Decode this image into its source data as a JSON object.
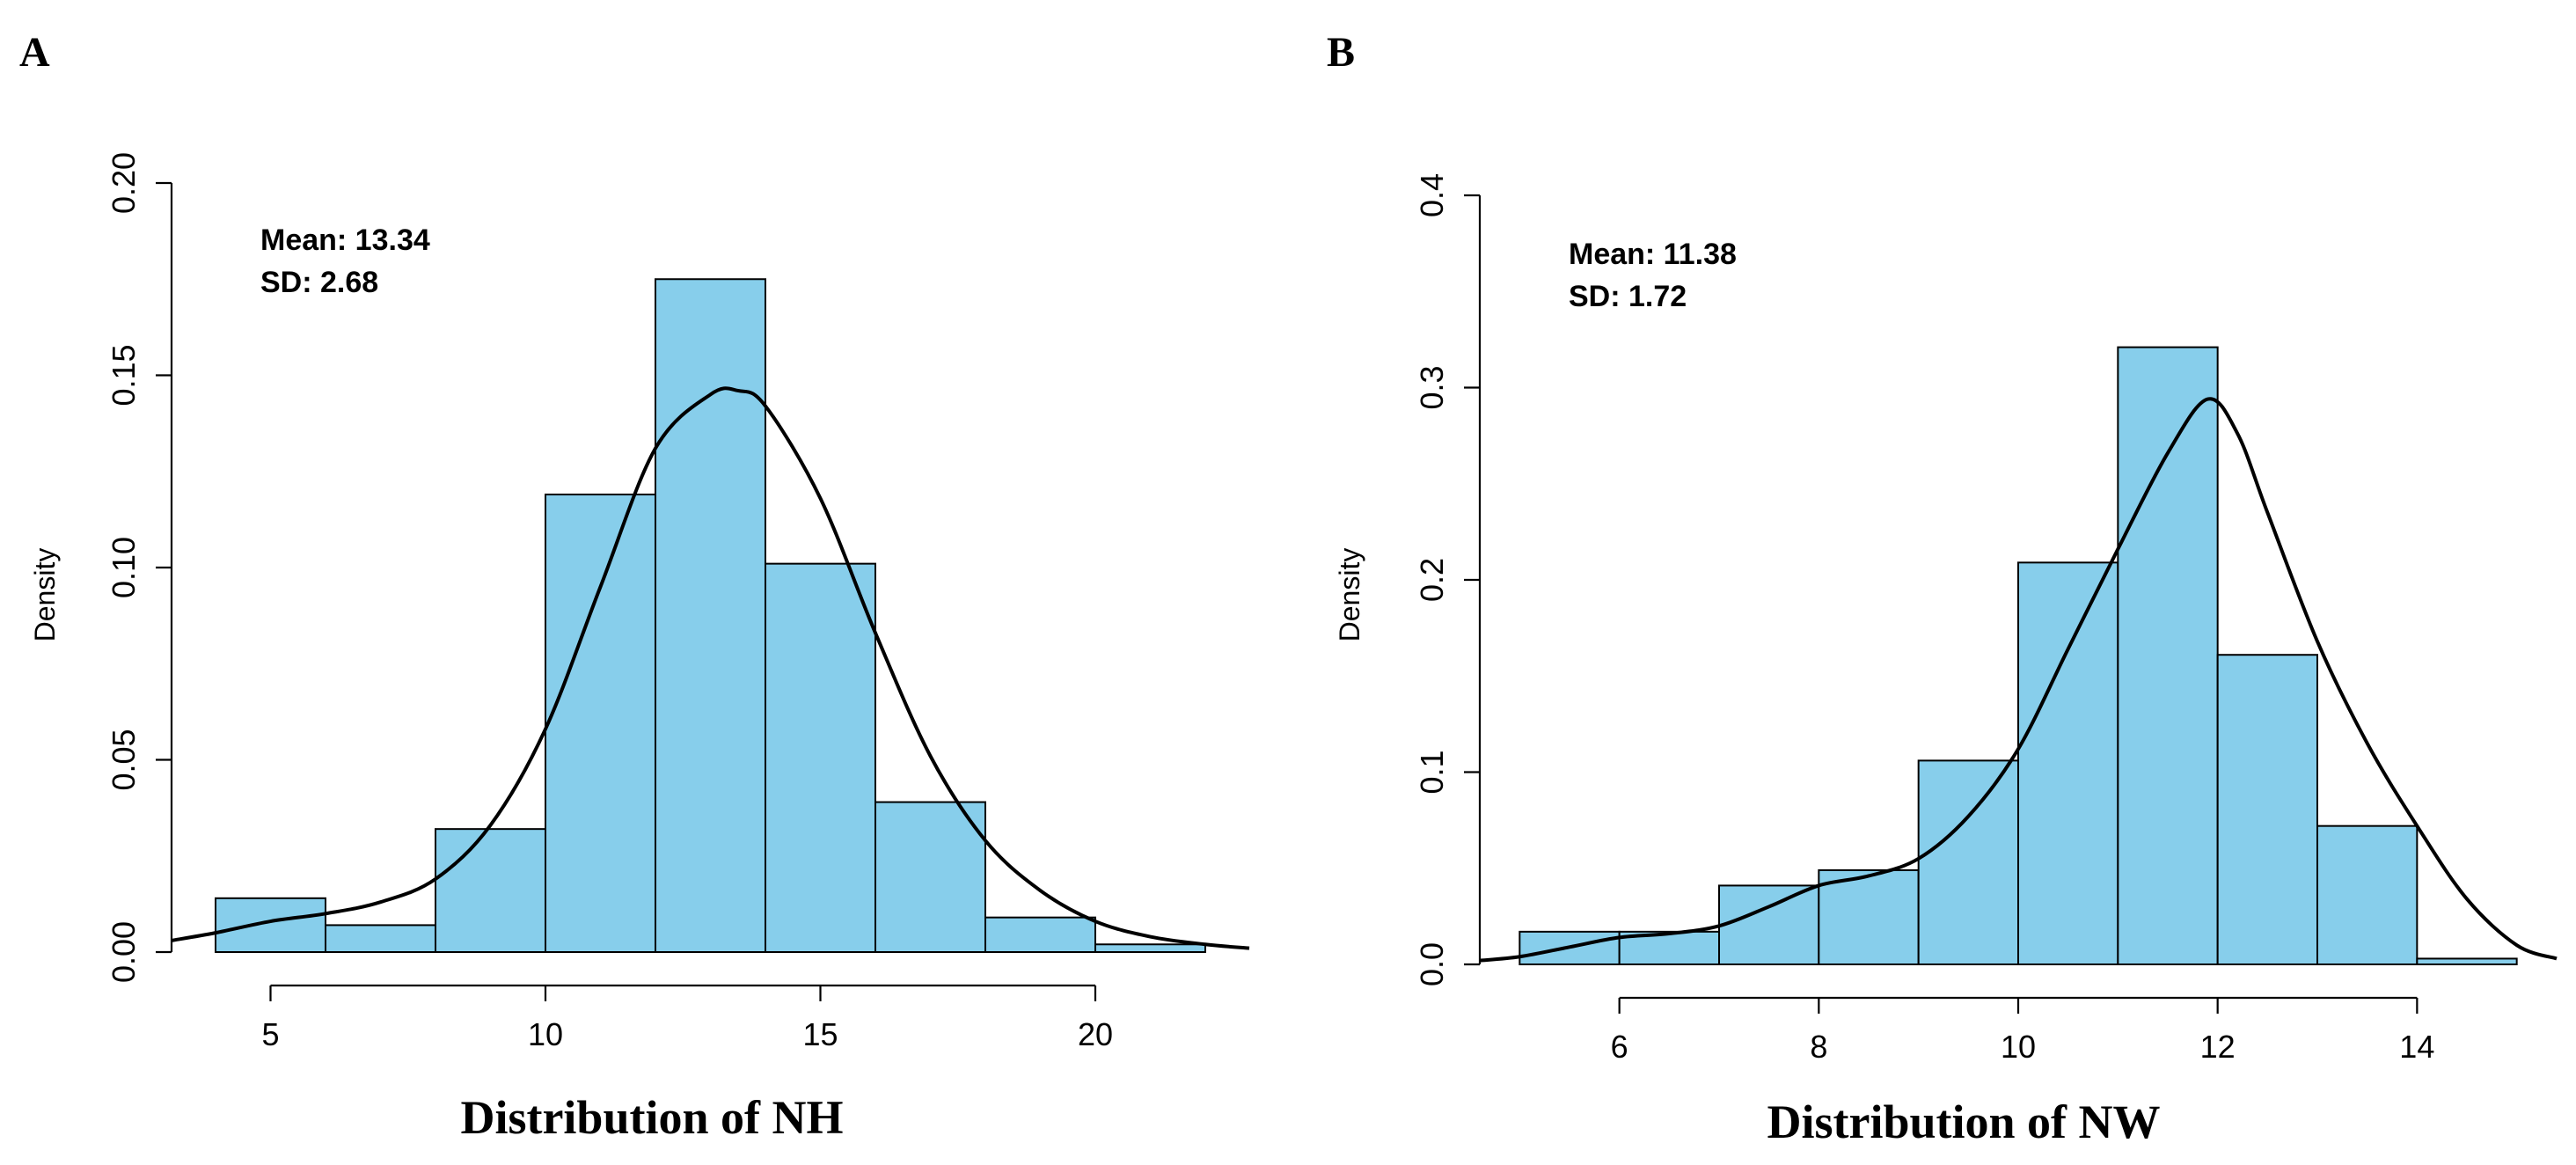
{
  "chart_data": [
    {
      "type": "bar",
      "panel_label": "A",
      "title": "",
      "xlabel": "Distribution of NH",
      "ylabel": "Density",
      "annotations": [
        "Mean: 13.34",
        "SD: 2.68"
      ],
      "xlim": [
        3.2,
        22.8
      ],
      "ylim": [
        0,
        0.2
      ],
      "xticks": [
        5,
        10,
        15,
        20
      ],
      "xtick_labels": [
        "5",
        "10",
        "15",
        "20"
      ],
      "yticks": [
        0.0,
        0.05,
        0.1,
        0.15,
        0.2
      ],
      "ytick_labels": [
        "0.00",
        "0.05",
        "0.10",
        "0.15",
        "0.20"
      ],
      "bins": [
        {
          "x0": 4,
          "x1": 6,
          "density": 0.014
        },
        {
          "x0": 6,
          "x1": 8,
          "density": 0.007
        },
        {
          "x0": 8,
          "x1": 10,
          "density": 0.032
        },
        {
          "x0": 10,
          "x1": 12,
          "density": 0.119
        },
        {
          "x0": 12,
          "x1": 14,
          "density": 0.175
        },
        {
          "x0": 14,
          "x1": 16,
          "density": 0.101
        },
        {
          "x0": 16,
          "x1": 18,
          "density": 0.039
        },
        {
          "x0": 18,
          "x1": 20,
          "density": 0.009
        },
        {
          "x0": 20,
          "x1": 22,
          "density": 0.002
        }
      ],
      "density_curve": {
        "x": [
          3.2,
          4,
          5,
          6,
          7,
          8,
          9,
          10,
          11,
          12,
          13,
          13.5,
          14,
          15,
          16,
          17,
          18,
          19,
          20,
          21,
          22,
          22.8
        ],
        "y": [
          0.003,
          0.005,
          0.008,
          0.01,
          0.013,
          0.019,
          0.033,
          0.058,
          0.095,
          0.131,
          0.145,
          0.146,
          0.142,
          0.118,
          0.083,
          0.051,
          0.029,
          0.016,
          0.008,
          0.004,
          0.002,
          0.001
        ]
      },
      "colors": {
        "bar_fill": "#87ceeb",
        "bar_edge": "#000000",
        "curve": "#000000"
      },
      "grid": false
    },
    {
      "type": "bar",
      "panel_label": "B",
      "title": "",
      "xlabel": "Distribution of NW",
      "ylabel": "Density",
      "annotations": [
        "Mean: 11.38",
        "SD: 1.72"
      ],
      "xlim": [
        4.6,
        15.4
      ],
      "ylim": [
        0,
        0.4
      ],
      "xticks": [
        6,
        8,
        10,
        12,
        14
      ],
      "xtick_labels": [
        "6",
        "8",
        "10",
        "12",
        "14"
      ],
      "yticks": [
        0.0,
        0.1,
        0.2,
        0.3,
        0.4
      ],
      "ytick_labels": [
        "0.0",
        "0.1",
        "0.2",
        "0.3",
        "0.4"
      ],
      "bins": [
        {
          "x0": 5,
          "x1": 6,
          "density": 0.017
        },
        {
          "x0": 6,
          "x1": 7,
          "density": 0.017
        },
        {
          "x0": 7,
          "x1": 8,
          "density": 0.041
        },
        {
          "x0": 8,
          "x1": 9,
          "density": 0.049
        },
        {
          "x0": 9,
          "x1": 10,
          "density": 0.106
        },
        {
          "x0": 10,
          "x1": 11,
          "density": 0.209
        },
        {
          "x0": 11,
          "x1": 12,
          "density": 0.321
        },
        {
          "x0": 12,
          "x1": 13,
          "density": 0.161
        },
        {
          "x0": 13,
          "x1": 14,
          "density": 0.072
        },
        {
          "x0": 14,
          "x1": 15,
          "density": 0.003
        }
      ],
      "density_curve": {
        "x": [
          4.6,
          5,
          5.5,
          6,
          6.5,
          7,
          7.5,
          8,
          8.5,
          9,
          9.5,
          10,
          10.5,
          11,
          11.5,
          11.9,
          12.2,
          12.5,
          13,
          13.5,
          14,
          14.5,
          15,
          15.4
        ],
        "y": [
          0.002,
          0.004,
          0.009,
          0.014,
          0.016,
          0.02,
          0.03,
          0.041,
          0.046,
          0.055,
          0.077,
          0.112,
          0.164,
          0.216,
          0.266,
          0.294,
          0.276,
          0.235,
          0.168,
          0.115,
          0.072,
          0.034,
          0.01,
          0.003
        ]
      },
      "colors": {
        "bar_fill": "#87ceeb",
        "bar_edge": "#000000",
        "curve": "#000000"
      },
      "grid": false
    }
  ]
}
